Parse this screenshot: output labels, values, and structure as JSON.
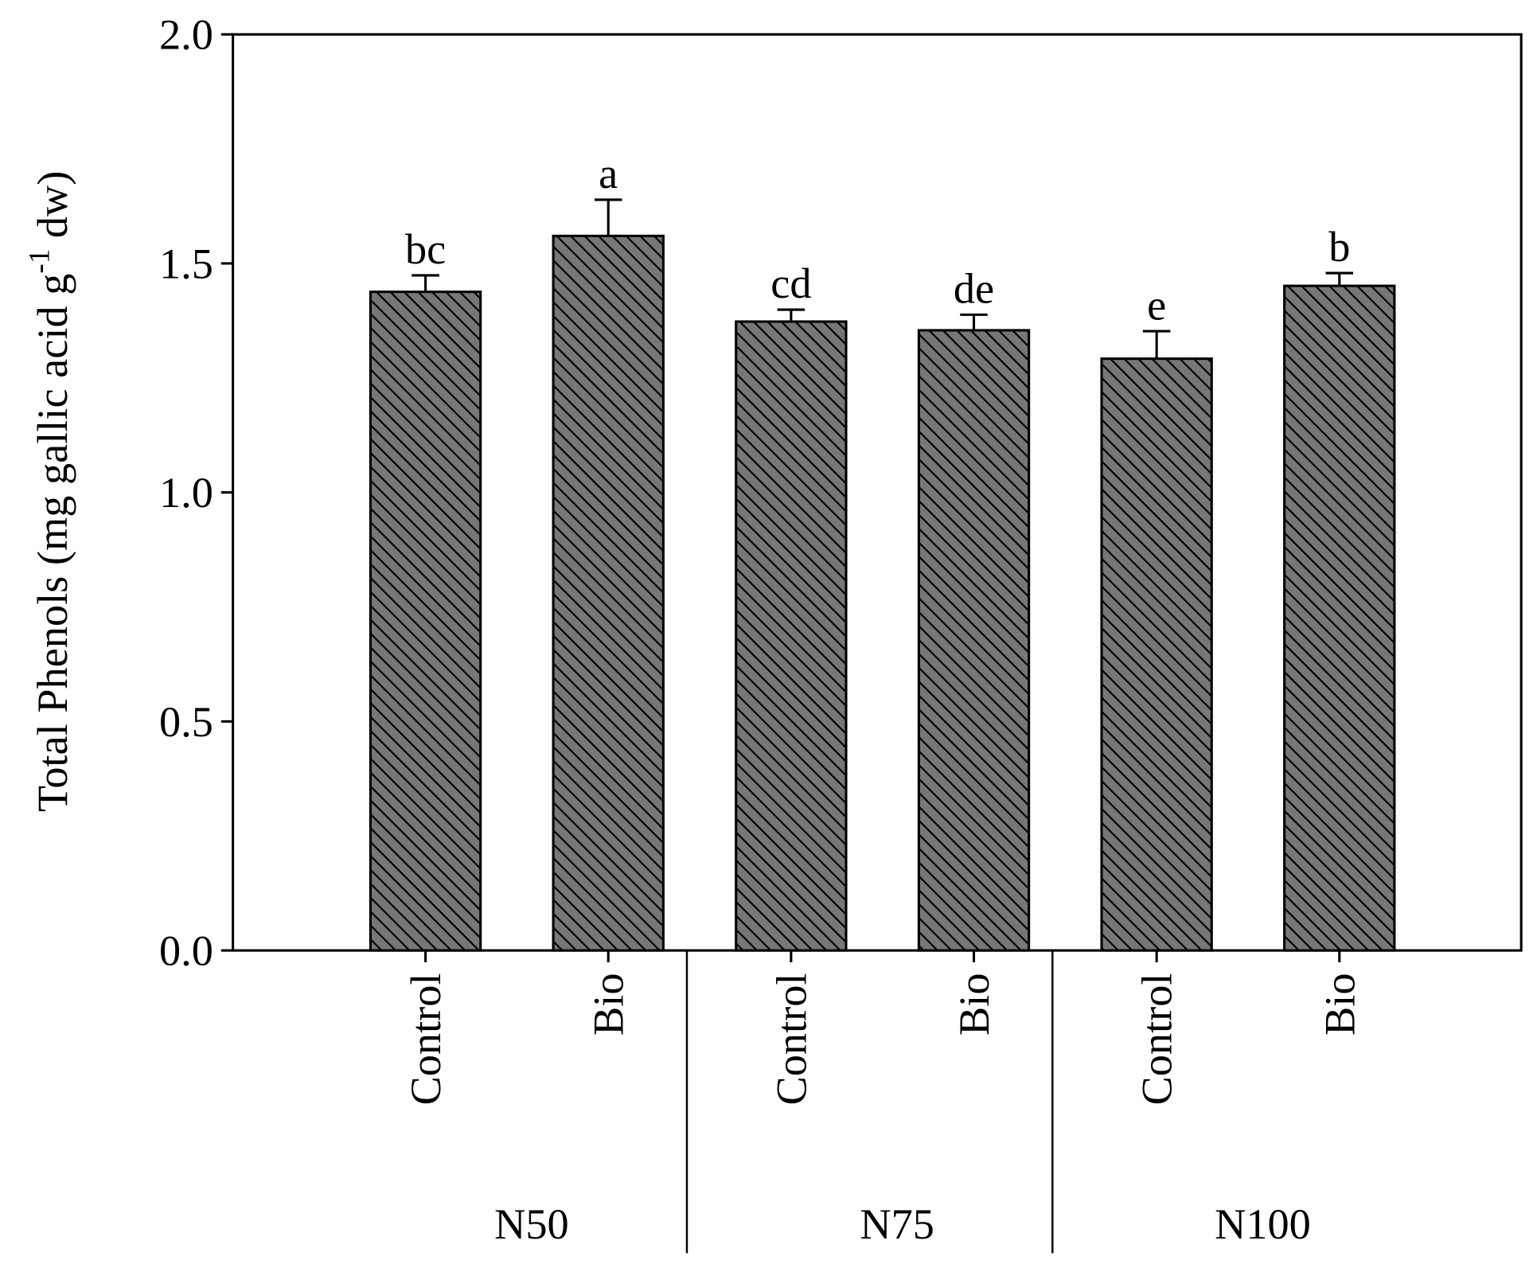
{
  "chart_data": {
    "type": "bar",
    "y_label": {
      "text": "Total Phenols (mg gallic acid g",
      "superscript": "-1",
      "suffix": " dw)"
    },
    "categories": [
      "Control",
      "Bio",
      "Control",
      "Bio",
      "Control",
      "Bio"
    ],
    "groups": [
      "N50",
      "N75",
      "N100"
    ],
    "values": [
      1.438,
      1.56,
      1.373,
      1.354,
      1.292,
      1.451
    ],
    "errors": [
      0.036,
      0.079,
      0.026,
      0.034,
      0.06,
      0.028
    ],
    "annotations": [
      "bc",
      "a",
      "cd",
      "de",
      "e",
      "b"
    ],
    "color": "#777777",
    "hatch": true,
    "ylim": [
      0,
      2
    ],
    "yticks": [
      {
        "value": 0,
        "label": "0.0"
      },
      {
        "value": 0.5,
        "label": "0.5"
      },
      {
        "value": 1,
        "label": "1.0"
      },
      {
        "value": 1.5,
        "label": "1.5"
      },
      {
        "value": 2,
        "label": "2.0"
      }
    ]
  }
}
